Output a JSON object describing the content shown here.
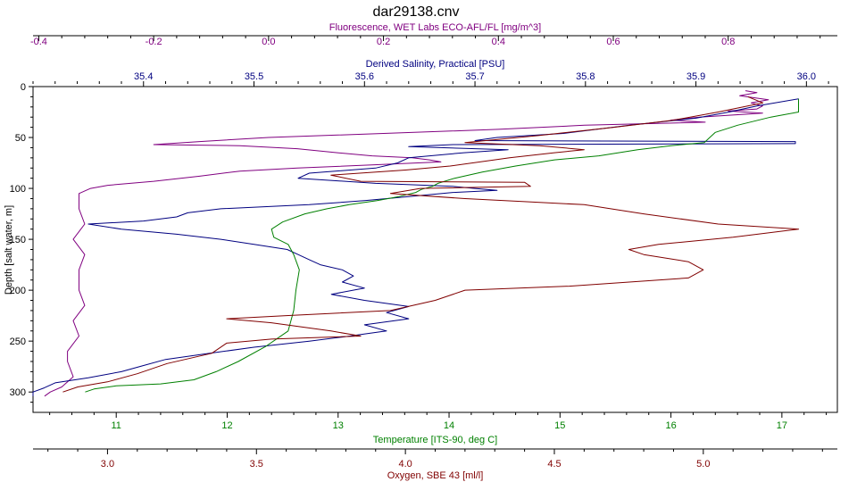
{
  "chart_data": {
    "type": "line",
    "title": "dar29138.cnv",
    "grid": false,
    "legend": "none",
    "y_axis": {
      "label": "Depth [salt water, m]",
      "range": [
        0,
        320
      ],
      "inverted": true,
      "ticks": [
        0,
        50,
        100,
        150,
        200,
        250,
        300
      ],
      "tick_labels": [
        "0",
        "50",
        "100",
        "150",
        "200",
        "250",
        "300"
      ]
    },
    "x_axes": [
      {
        "id": "fluorescence",
        "position": "top",
        "row": 1,
        "label": "Fluorescence, WET Labs ECO-AFL/FL [mg/m^3]",
        "color": "#800080",
        "range": [
          -0.41,
          0.99
        ],
        "ticks": [
          -0.4,
          -0.2,
          0.0,
          0.2,
          0.4,
          0.6,
          0.8
        ],
        "tick_labels": [
          "-0.4",
          "-0.2",
          "0.0",
          "0.2",
          "0.4",
          "0.6",
          "0.8"
        ]
      },
      {
        "id": "salinity",
        "position": "top",
        "row": 2,
        "label": "Derived Salinity, Practical [PSU]",
        "color": "#000080",
        "range": [
          35.3,
          36.028
        ],
        "ticks": [
          35.4,
          35.5,
          35.6,
          35.7,
          35.8,
          35.9,
          36.0
        ],
        "tick_labels": [
          "35.4",
          "35.5",
          "35.6",
          "35.7",
          "35.8",
          "35.9",
          "36.0"
        ]
      },
      {
        "id": "temperature",
        "position": "bottom",
        "row": 1,
        "label": "Temperature [ITS-90, deg C]",
        "color": "#008000",
        "range": [
          10.25,
          17.5
        ],
        "ticks": [
          11,
          12,
          13,
          14,
          15,
          16,
          17
        ],
        "tick_labels": [
          "11",
          "12",
          "13",
          "14",
          "15",
          "16",
          "17"
        ]
      },
      {
        "id": "oxygen",
        "position": "bottom",
        "row": 2,
        "label": "Oxygen, SBE 43 [ml/l]",
        "color": "#800000",
        "range": [
          2.75,
          5.45
        ],
        "ticks": [
          3.0,
          3.5,
          4.0,
          4.5,
          5.0
        ],
        "tick_labels": [
          "3.0",
          "3.5",
          "4.0",
          "4.5",
          "5.0"
        ]
      }
    ],
    "series": [
      {
        "axis": "fluorescence",
        "color": "#800080",
        "points": [
          [
            0.83,
            4
          ],
          [
            0.85,
            6
          ],
          [
            0.82,
            9
          ],
          [
            0.87,
            13
          ],
          [
            0.84,
            16
          ],
          [
            0.86,
            19
          ],
          [
            0.85,
            22
          ],
          [
            0.8,
            24
          ],
          [
            0.86,
            26
          ],
          [
            0.75,
            30
          ],
          [
            0.7,
            33
          ],
          [
            0.76,
            35
          ],
          [
            0.55,
            38
          ],
          [
            0.4,
            42
          ],
          [
            0.2,
            46
          ],
          [
            0.0,
            50
          ],
          [
            -0.12,
            54
          ],
          [
            -0.2,
            57
          ],
          [
            -0.05,
            58
          ],
          [
            0.05,
            61
          ],
          [
            0.12,
            65
          ],
          [
            0.18,
            68
          ],
          [
            0.25,
            70
          ],
          [
            0.28,
            72
          ],
          [
            0.3,
            74
          ],
          [
            0.18,
            77
          ],
          [
            0.05,
            80
          ],
          [
            -0.05,
            83
          ],
          [
            -0.12,
            88
          ],
          [
            -0.2,
            93
          ],
          [
            -0.28,
            97
          ],
          [
            -0.31,
            100
          ],
          [
            -0.33,
            105
          ],
          [
            -0.33,
            120
          ],
          [
            -0.32,
            135
          ],
          [
            -0.34,
            150
          ],
          [
            -0.32,
            165
          ],
          [
            -0.33,
            180
          ],
          [
            -0.33,
            200
          ],
          [
            -0.32,
            215
          ],
          [
            -0.34,
            230
          ],
          [
            -0.33,
            245
          ],
          [
            -0.35,
            260
          ],
          [
            -0.35,
            270
          ],
          [
            -0.34,
            285
          ],
          [
            -0.36,
            295
          ],
          [
            -0.38,
            300
          ],
          [
            -0.39,
            304
          ]
        ]
      },
      {
        "axis": "salinity",
        "color": "#000080",
        "points": [
          [
            35.993,
            12
          ],
          [
            35.955,
            19
          ],
          [
            35.93,
            25
          ],
          [
            35.9,
            31
          ],
          [
            35.84,
            38
          ],
          [
            35.81,
            42
          ],
          [
            35.78,
            46
          ],
          [
            35.72,
            50
          ],
          [
            35.7,
            53
          ],
          [
            35.99,
            54
          ],
          [
            35.99,
            56
          ],
          [
            35.68,
            57
          ],
          [
            35.64,
            59
          ],
          [
            35.73,
            62
          ],
          [
            35.69,
            65
          ],
          [
            35.64,
            70
          ],
          [
            35.63,
            75
          ],
          [
            35.61,
            80
          ],
          [
            35.55,
            85
          ],
          [
            35.54,
            90
          ],
          [
            35.61,
            95
          ],
          [
            35.68,
            98
          ],
          [
            35.7,
            100
          ],
          [
            35.72,
            102
          ],
          [
            35.68,
            104
          ],
          [
            35.64,
            108
          ],
          [
            35.6,
            112
          ],
          [
            35.55,
            116
          ],
          [
            35.47,
            120
          ],
          [
            35.44,
            124
          ],
          [
            35.43,
            128
          ],
          [
            35.4,
            132
          ],
          [
            35.35,
            135
          ],
          [
            35.38,
            140
          ],
          [
            35.43,
            145
          ],
          [
            35.47,
            150
          ],
          [
            35.5,
            155
          ],
          [
            35.53,
            160
          ],
          [
            35.54,
            165
          ],
          [
            35.55,
            170
          ],
          [
            35.56,
            175
          ],
          [
            35.58,
            180
          ],
          [
            35.59,
            186
          ],
          [
            35.58,
            192
          ],
          [
            35.6,
            198
          ],
          [
            35.57,
            204
          ],
          [
            35.6,
            210
          ],
          [
            35.64,
            216
          ],
          [
            35.62,
            222
          ],
          [
            35.64,
            228
          ],
          [
            35.6,
            234
          ],
          [
            35.62,
            240
          ],
          [
            35.58,
            246
          ],
          [
            35.55,
            250
          ],
          [
            35.5,
            256
          ],
          [
            35.46,
            262
          ],
          [
            35.42,
            268
          ],
          [
            35.4,
            274
          ],
          [
            35.38,
            280
          ],
          [
            35.35,
            286
          ],
          [
            35.32,
            291
          ],
          [
            35.31,
            296
          ],
          [
            35.3,
            300
          ],
          [
            35.3,
            304
          ]
        ]
      },
      {
        "axis": "temperature",
        "color": "#008000",
        "points": [
          [
            17.15,
            12
          ],
          [
            17.15,
            25
          ],
          [
            16.9,
            30
          ],
          [
            16.6,
            38
          ],
          [
            16.4,
            45
          ],
          [
            16.35,
            50
          ],
          [
            16.3,
            55
          ],
          [
            16.0,
            58
          ],
          [
            15.7,
            62
          ],
          [
            15.35,
            68
          ],
          [
            14.95,
            72
          ],
          [
            14.6,
            78
          ],
          [
            14.3,
            84
          ],
          [
            14.05,
            90
          ],
          [
            13.9,
            95
          ],
          [
            13.85,
            98
          ],
          [
            13.75,
            101
          ],
          [
            13.7,
            104
          ],
          [
            13.55,
            108
          ],
          [
            13.35,
            112
          ],
          [
            13.1,
            116
          ],
          [
            12.9,
            120
          ],
          [
            12.7,
            125
          ],
          [
            12.5,
            133
          ],
          [
            12.4,
            140
          ],
          [
            12.42,
            148
          ],
          [
            12.55,
            155
          ],
          [
            12.6,
            165
          ],
          [
            12.65,
            180
          ],
          [
            12.62,
            200
          ],
          [
            12.6,
            220
          ],
          [
            12.55,
            240
          ],
          [
            12.35,
            255
          ],
          [
            12.1,
            270
          ],
          [
            11.9,
            280
          ],
          [
            11.7,
            288
          ],
          [
            11.4,
            292
          ],
          [
            11.0,
            294
          ],
          [
            10.8,
            297
          ],
          [
            10.72,
            300
          ]
        ]
      },
      {
        "axis": "oxygen",
        "color": "#800000",
        "points": [
          [
            5.15,
            10
          ],
          [
            5.2,
            16
          ],
          [
            5.05,
            25
          ],
          [
            4.9,
            33
          ],
          [
            4.7,
            40
          ],
          [
            4.45,
            48
          ],
          [
            4.2,
            55
          ],
          [
            4.45,
            58
          ],
          [
            4.6,
            62
          ],
          [
            4.5,
            65
          ],
          [
            4.35,
            70
          ],
          [
            4.15,
            78
          ],
          [
            4.0,
            82
          ],
          [
            3.75,
            87
          ],
          [
            3.85,
            93
          ],
          [
            4.4,
            94
          ],
          [
            4.42,
            98
          ],
          [
            4.05,
            100
          ],
          [
            3.95,
            105
          ],
          [
            4.2,
            110
          ],
          [
            4.4,
            113
          ],
          [
            4.6,
            116
          ],
          [
            4.8,
            125
          ],
          [
            5.05,
            135
          ],
          [
            5.32,
            140
          ],
          [
            5.1,
            148
          ],
          [
            4.85,
            155
          ],
          [
            4.75,
            160
          ],
          [
            4.8,
            165
          ],
          [
            4.95,
            172
          ],
          [
            5.0,
            180
          ],
          [
            4.95,
            188
          ],
          [
            4.55,
            196
          ],
          [
            4.2,
            200
          ],
          [
            4.1,
            210
          ],
          [
            3.95,
            220
          ],
          [
            3.6,
            225
          ],
          [
            3.4,
            228
          ],
          [
            3.55,
            232
          ],
          [
            3.75,
            240
          ],
          [
            3.85,
            245
          ],
          [
            3.55,
            248
          ],
          [
            3.4,
            252
          ],
          [
            3.35,
            262
          ],
          [
            3.2,
            272
          ],
          [
            3.1,
            282
          ],
          [
            3.0,
            290
          ],
          [
            2.9,
            295
          ],
          [
            2.85,
            300
          ]
        ]
      }
    ]
  }
}
